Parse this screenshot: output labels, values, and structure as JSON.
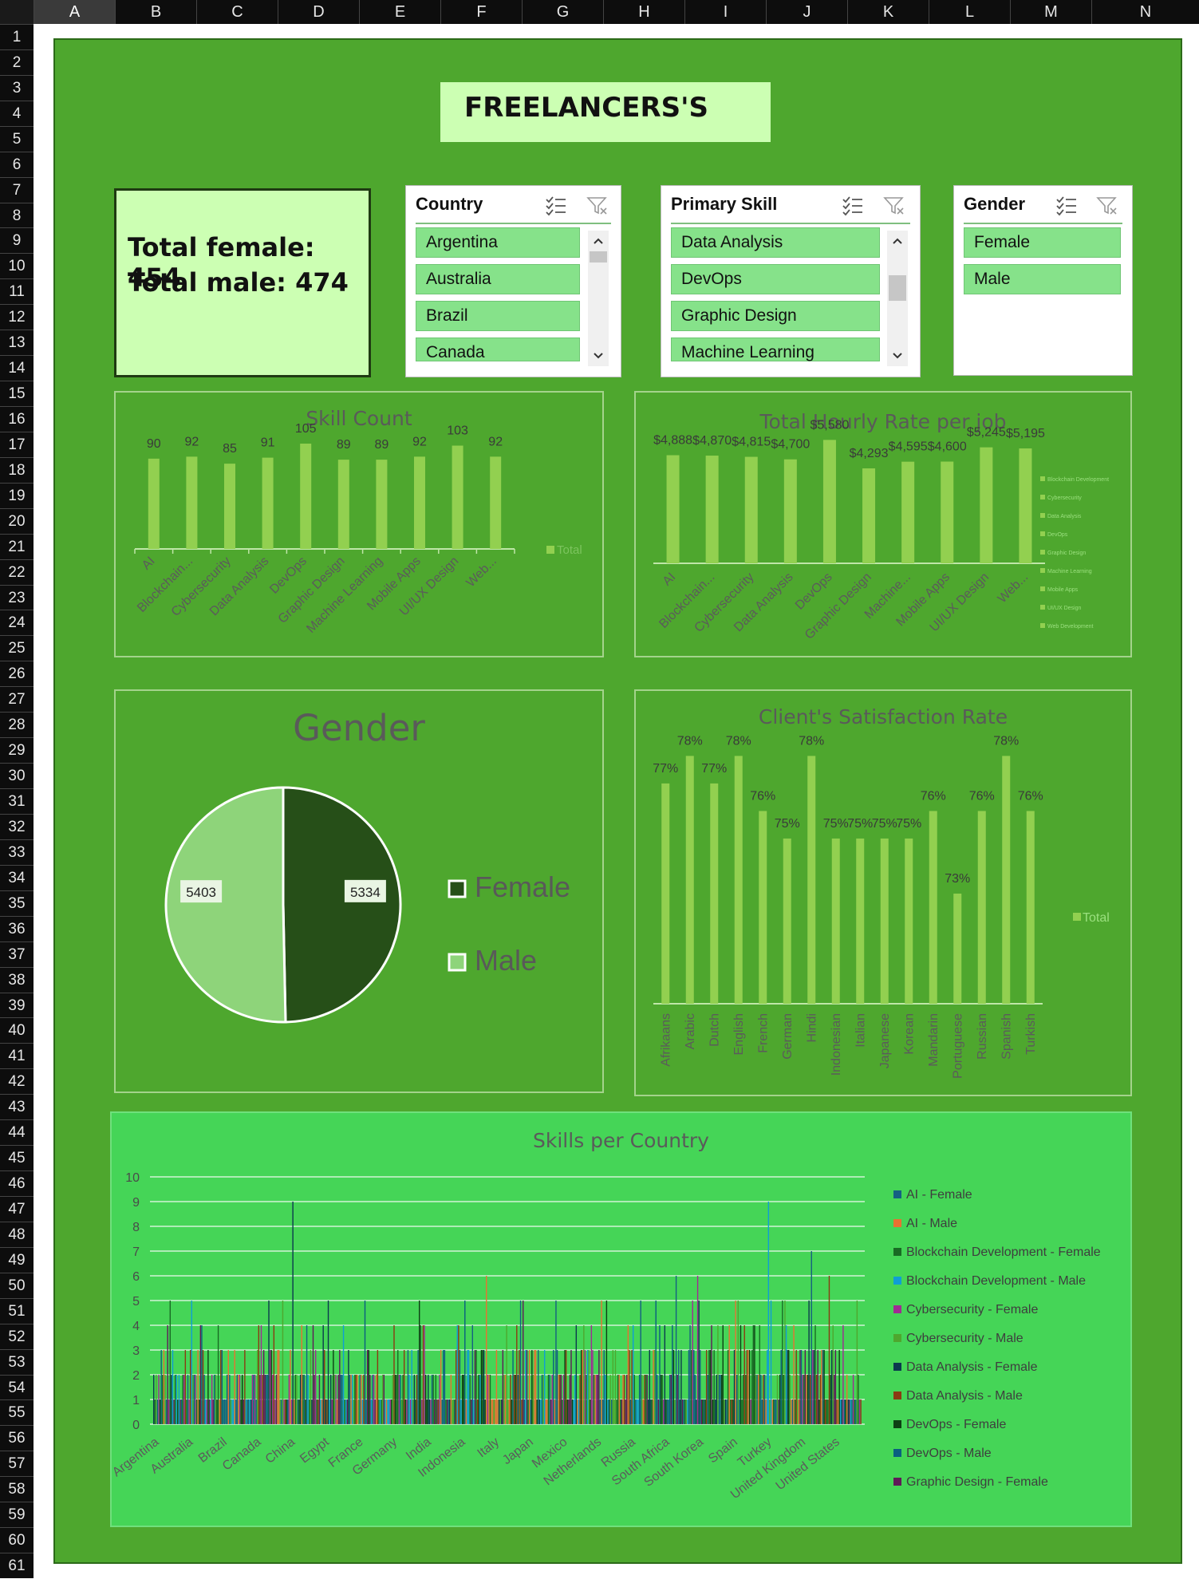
{
  "sheet": {
    "columns": [
      "A",
      "B",
      "C",
      "D",
      "E",
      "F",
      "G",
      "H",
      "I",
      "J",
      "K",
      "L",
      "M",
      "N"
    ],
    "selected_column": "A",
    "rows": [
      "1",
      "2",
      "3",
      "4",
      "5",
      "6",
      "7",
      "8",
      "9",
      "10",
      "11",
      "12",
      "13",
      "14",
      "15",
      "16",
      "17",
      "18",
      "19",
      "20",
      "21",
      "22",
      "23",
      "24",
      "25",
      "26",
      "27",
      "28",
      "29",
      "30",
      "31",
      "32",
      "33",
      "34",
      "35",
      "36",
      "37",
      "38",
      "39",
      "40",
      "41",
      "42",
      "43",
      "44",
      "45",
      "46",
      "47",
      "48",
      "49",
      "50",
      "51",
      "52",
      "53",
      "54",
      "55",
      "56",
      "57",
      "58",
      "59",
      "60",
      "61"
    ]
  },
  "dashboard": {
    "title": "FREELANCERS'S",
    "total_female": "Total female: 454",
    "total_male": "Total male: 474",
    "background_color": "#4ea72e"
  },
  "slicers": {
    "country": {
      "title": "Country",
      "items": [
        "Argentina",
        "Australia",
        "Brazil",
        "Canada"
      ],
      "filter_icon": "clear-filter-icon",
      "multiselect_icon": "multiselect-icon"
    },
    "skill": {
      "title": "Primary Skill",
      "items": [
        "Data Analysis",
        "DevOps",
        "Graphic Design",
        "Machine Learning"
      ]
    },
    "gender": {
      "title": "Gender",
      "items": [
        "Female",
        "Male"
      ]
    }
  },
  "chart_data": [
    {
      "id": "skill-count",
      "type": "bar",
      "title": "Skill Count",
      "categories": [
        "AI",
        "Blockchain...",
        "Cybersecurity",
        "Data Analysis",
        "DevOps",
        "Graphic Design",
        "Machine Learning",
        "Mobile Apps",
        "UI/UX Design",
        "Web..."
      ],
      "series": [
        {
          "name": "Total",
          "values": [
            90,
            92,
            85,
            91,
            105,
            89,
            89,
            92,
            103,
            92
          ]
        }
      ],
      "ylim": [
        0,
        140
      ],
      "legend": "right",
      "color": "#92d050"
    },
    {
      "id": "hourly-rate",
      "type": "bar",
      "title": "Total Hourly Rate per job",
      "categories": [
        "AI",
        "Blockchain...",
        "Cybersecurity",
        "Data Analysis",
        "DevOps",
        "Graphic Design",
        "Machine...",
        "Mobile Apps",
        "UI/UX Design",
        "Web..."
      ],
      "values": [
        4888,
        4870,
        4815,
        4700,
        5580,
        4293,
        4595,
        4600,
        5245,
        5195
      ],
      "labels": [
        "$4,888",
        "$4,870",
        "$4,815",
        "$4,700",
        "$5,580",
        "$4,293",
        "$4,595",
        "$4,600",
        "$5,245",
        "$5,195"
      ],
      "legend_entries": [
        "Blockchain Development",
        "Cybersecurity",
        "Data Analysis",
        "DevOps",
        "Graphic Design",
        "Machine Learning",
        "Mobile Apps",
        "UI/UX Design",
        "Web Development"
      ],
      "ylim": [
        0,
        7000
      ],
      "legend": "right",
      "color": "#92d050"
    },
    {
      "id": "gender-pie",
      "type": "pie",
      "title": "Gender",
      "categories": [
        "Female",
        "Male"
      ],
      "values": [
        5334,
        5403
      ],
      "colors": [
        "#264f18",
        "#8ed47a"
      ],
      "legend": "right"
    },
    {
      "id": "satisfaction",
      "type": "bar",
      "title": "Client's Satisfaction Rate",
      "categories": [
        "Afrikaans",
        "Arabic",
        "Dutch",
        "English",
        "French",
        "German",
        "Hindi",
        "Indonesian",
        "Italian",
        "Japanese",
        "Korean",
        "Mandarin",
        "Portuguese",
        "Russian",
        "Spanish",
        "Turkish"
      ],
      "series": [
        {
          "name": "Total",
          "values": [
            77,
            78,
            77,
            78,
            76,
            75,
            78,
            75,
            75,
            75,
            75,
            76,
            73,
            76,
            78,
            76
          ]
        }
      ],
      "labels": [
        "77%",
        "78%",
        "77%",
        "78%",
        "76%",
        "75%",
        "78%",
        "75%",
        "75%",
        "75%",
        "75%",
        "76%",
        "73%",
        "76%",
        "78%",
        "76%"
      ],
      "ylim": [
        69,
        79.2
      ],
      "legend": "right",
      "color": "#92d050"
    },
    {
      "id": "skills-per-country",
      "type": "bar",
      "title": "Skills per Country",
      "categories": [
        "Argentina",
        "Australia",
        "Brazil",
        "Canada",
        "China",
        "Egypt",
        "France",
        "Germany",
        "India",
        "Indonesia",
        "Italy",
        "Japan",
        "Mexico",
        "Netherlands",
        "Russia",
        "South Africa",
        "South Korea",
        "Spain",
        "Turkey",
        "United Kingdom",
        "United States"
      ],
      "yticks": [
        0,
        1,
        2,
        3,
        4,
        5,
        6,
        7,
        8,
        9,
        10
      ],
      "ylim": [
        0,
        10
      ],
      "legend": "right",
      "series": [
        {
          "name": "AI - Female",
          "color": "#156082"
        },
        {
          "name": "AI - Male",
          "color": "#e97132"
        },
        {
          "name": "Blockchain Development - Female",
          "color": "#196b24"
        },
        {
          "name": "Blockchain Development - Male",
          "color": "#0f9ed5"
        },
        {
          "name": "Cybersecurity - Female",
          "color": "#a02b93"
        },
        {
          "name": "Cybersecurity - Male",
          "color": "#4ea72e"
        },
        {
          "name": "Data Analysis - Female",
          "color": "#0b3a4e"
        },
        {
          "name": "Data Analysis - Male",
          "color": "#8b3a12"
        },
        {
          "name": "DevOps - Female",
          "color": "#0e4014"
        },
        {
          "name": "DevOps - Male",
          "color": "#0a5f80"
        },
        {
          "name": "Graphic Design - Female",
          "color": "#5f1a58"
        }
      ]
    }
  ]
}
